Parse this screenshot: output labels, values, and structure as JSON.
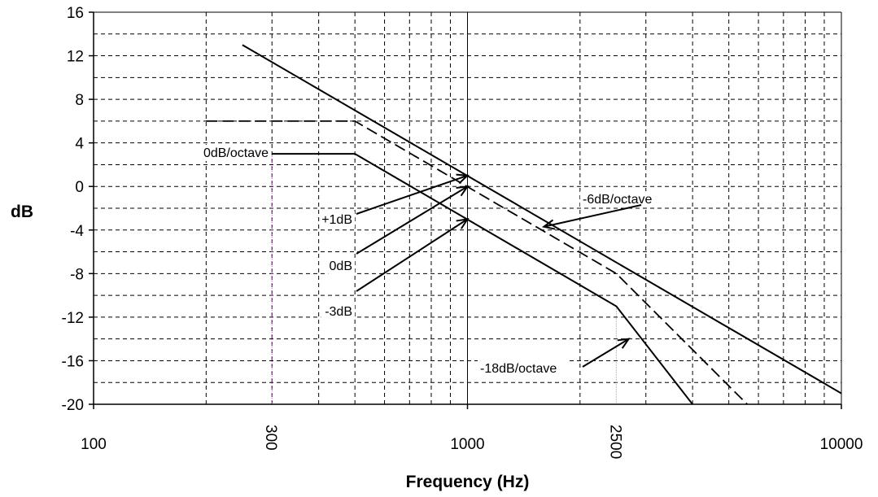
{
  "chart_data": {
    "type": "line",
    "title": "",
    "xlabel": "Frequency (Hz)",
    "ylabel": "dB",
    "xscale": "log",
    "xlim": [
      100,
      10000
    ],
    "ylim": [
      -20,
      16
    ],
    "grid": true,
    "x_ticks": [
      "100",
      "1000",
      "10000"
    ],
    "x_markers": [
      "300",
      "2500"
    ],
    "y_ticks": [
      "16",
      "12",
      "8",
      "4",
      "0",
      "-4",
      "-8",
      "-12",
      "-16",
      "-20"
    ],
    "series": [
      {
        "style": "solid",
        "points": [
          [
            250,
            13
          ],
          [
            10000,
            -19
          ]
        ]
      },
      {
        "style": "dashed",
        "points": [
          [
            200,
            6
          ],
          [
            500,
            6
          ],
          [
            2500,
            -8
          ],
          [
            5600,
            -20
          ]
        ]
      },
      {
        "style": "solid",
        "points": [
          [
            300,
            3
          ],
          [
            500,
            3
          ],
          [
            2500,
            -11
          ],
          [
            4000,
            -20
          ]
        ]
      }
    ],
    "reference_lines": [
      300,
      2500
    ],
    "annotations": [
      {
        "text": "0dB/octave",
        "x": 300,
        "y": 3
      },
      {
        "text": "+1dB",
        "x": 1000,
        "y": 1
      },
      {
        "text": "0dB",
        "x": 1000,
        "y": 0
      },
      {
        "text": "-3dB",
        "x": 1000,
        "y": -3
      },
      {
        "text": "-6dB/octave",
        "x": 1600,
        "y": -3.7
      },
      {
        "text": "-18dB/octave",
        "x": 2700,
        "y": -14
      }
    ]
  }
}
